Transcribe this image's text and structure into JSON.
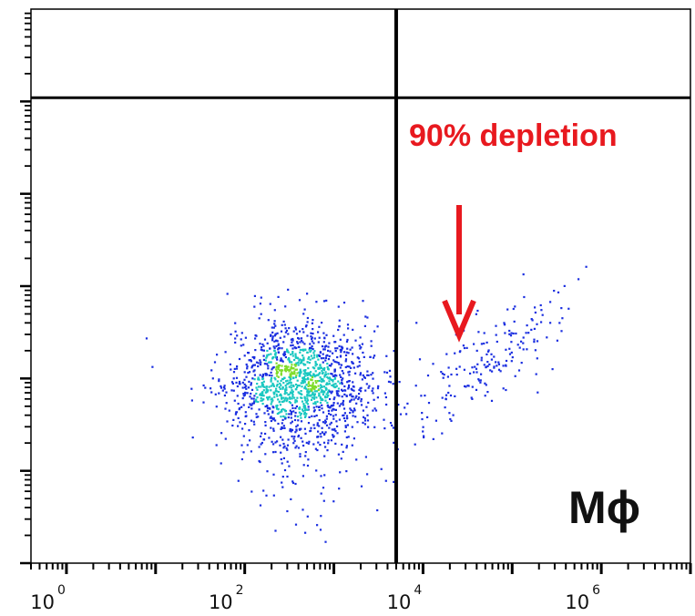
{
  "chart_data": {
    "type": "scatter",
    "title": "",
    "xlabel": "",
    "ylabel": "",
    "x_scale": "log",
    "xlim": [
      0.4,
      10000000
    ],
    "ylim": [
      0,
      1
    ],
    "x_ticks": [
      {
        "value": 1,
        "base": "10",
        "exponent": "0"
      },
      {
        "value": 100,
        "base": "10",
        "exponent": "2"
      },
      {
        "value": 10000,
        "base": "10",
        "exponent": "4"
      },
      {
        "value": 1000000,
        "base": "10",
        "exponent": "6"
      }
    ],
    "gates": {
      "x_threshold": 5000,
      "y_threshold": 0.84
    },
    "annotations": {
      "depletion_text": "90% depletion",
      "depletion_color": "#e8191f",
      "population_label": "Mϕ"
    },
    "colors": {
      "low_density": "#1a2ee0",
      "mid_density": "#18c7c0",
      "high_density": "#7fdc2a",
      "peak_density": "#d8e82a",
      "gate_line": "#000000"
    },
    "populations": [
      {
        "name": "",
        "center_log_x": 2.65,
        "center_y": 0.33,
        "spread_log_x": 0.42,
        "spread_y": 0.055,
        "count": 1500
      },
      {
        "name": "",
        "center_log_x": 4.75,
        "center_y": 0.37,
        "spread_log_x": 0.45,
        "spread_y": 0.07,
        "count": 190
      }
    ]
  }
}
